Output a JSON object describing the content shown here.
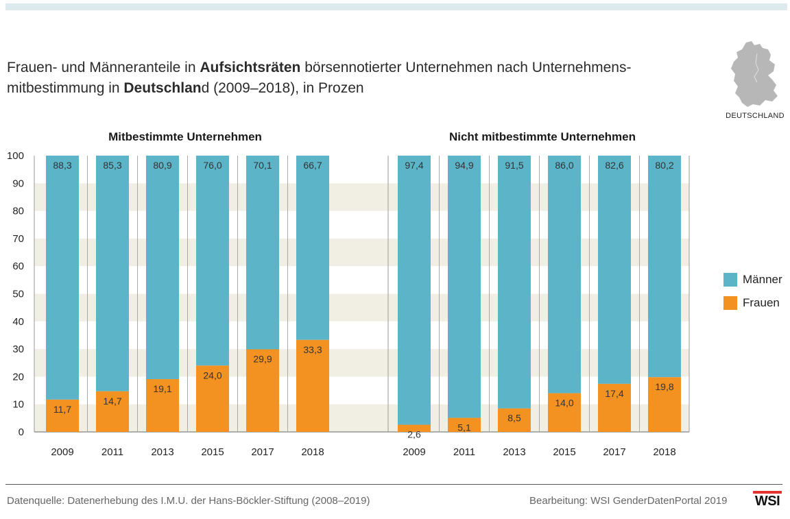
{
  "title": {
    "part1": "Frauen- und Männeranteile in ",
    "bold1": "Aufsichtsräten",
    "part2": " börsennotierter Unternehmen nach Unternehmens-",
    "part3": "mitbestimmung in  ",
    "bold2": "Deutschlan",
    "part4": "d (2009–2018), in Prozen"
  },
  "country_label": "DEUTSCHLAND",
  "legend": {
    "men": "Männer",
    "women": "Frauen"
  },
  "colors": {
    "men": "#5bb4c8",
    "women": "#f39220",
    "band": "#f1efe4",
    "map": "#b7b7b7"
  },
  "footer": {
    "source": "Datenquelle: Datenerhebung des I.M.U. der Hans-Böckler-Stiftung (2008–2019)",
    "credit": "Bearbeitung: WSI GenderDatenPortal 2019",
    "logo": "WSI"
  },
  "chart_data": {
    "type": "bar",
    "stacked": true,
    "ylim": [
      0,
      100
    ],
    "yticks": [
      0,
      10,
      20,
      30,
      40,
      50,
      60,
      70,
      80,
      90,
      100
    ],
    "grid": "alternating horizontal bands",
    "legend_position": "right",
    "groups": [
      {
        "title": "Mitbestimmte Unternehmen",
        "categories": [
          "2009",
          "2011",
          "2013",
          "2015",
          "2017",
          "2018"
        ],
        "series": [
          {
            "name": "Frauen",
            "values": [
              11.7,
              14.7,
              19.1,
              24.0,
              29.9,
              33.3
            ],
            "labels": [
              "11,7",
              "14,7",
              "19,1",
              "24,0",
              "29,9",
              "33,3"
            ]
          },
          {
            "name": "Männer",
            "values": [
              88.3,
              85.3,
              80.9,
              76.0,
              70.1,
              66.7
            ],
            "labels": [
              "88,3",
              "85,3",
              "80,9",
              "76,0",
              "70,1",
              "66,7"
            ]
          }
        ]
      },
      {
        "title": "Nicht mitbestimmte Unternehmen",
        "categories": [
          "2009",
          "2011",
          "2013",
          "2015",
          "2017",
          "2018"
        ],
        "series": [
          {
            "name": "Frauen",
            "values": [
              2.6,
              5.1,
              8.5,
              14.0,
              17.4,
              19.8
            ],
            "labels": [
              "2,6",
              "5,1",
              "8,5",
              "14,0",
              "17,4",
              "19,8"
            ]
          },
          {
            "name": "Männer",
            "values": [
              97.4,
              94.9,
              91.5,
              86.0,
              82.6,
              80.2
            ],
            "labels": [
              "97,4",
              "94,9",
              "91,5",
              "86,0",
              "82,6",
              "80,2"
            ]
          }
        ]
      }
    ]
  }
}
